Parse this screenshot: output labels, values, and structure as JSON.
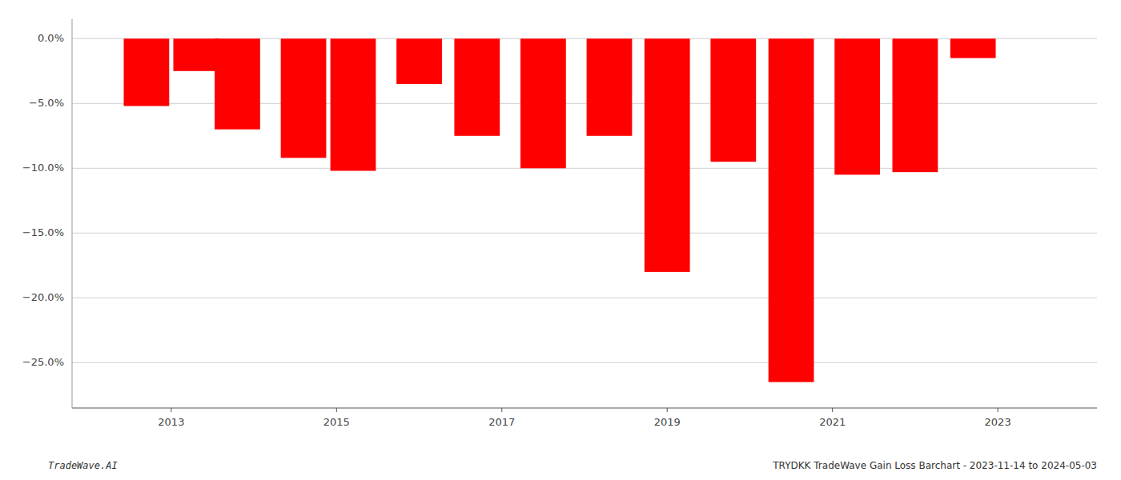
{
  "chart_data": {
    "type": "bar",
    "x": [
      2012.7,
      2013.3,
      2013.8,
      2014.6,
      2015.2,
      2016.0,
      2016.7,
      2017.5,
      2018.3,
      2019.0,
      2019.8,
      2020.5,
      2021.3,
      2022.0,
      2022.7
    ],
    "values": [
      -5.2,
      -2.5,
      -7.0,
      -9.2,
      -10.2,
      -3.5,
      -7.5,
      -10.0,
      -7.5,
      -18.0,
      -9.5,
      -26.5,
      -10.5,
      -10.3,
      -1.5
    ],
    "color": "#ff0000",
    "xlim": [
      2011.8,
      2024.2
    ],
    "xticks": [
      2013,
      2015,
      2017,
      2019,
      2021,
      2023
    ],
    "ylim": [
      -28.5,
      1.5
    ],
    "yticks": [
      {
        "value": 0.0,
        "label": "0.0%"
      },
      {
        "value": -5.0,
        "label": "−5.0%"
      },
      {
        "value": -10.0,
        "label": "−10.0%"
      },
      {
        "value": -15.0,
        "label": "−15.0%"
      },
      {
        "value": -20.0,
        "label": "−20.0%"
      },
      {
        "value": -25.0,
        "label": "−25.0%"
      }
    ],
    "grid": true,
    "annotations": [
      "TradeWave.AI",
      "TRYDKK TradeWave Gain Loss Barchart - 2023-11-14 to 2024-05-03"
    ]
  }
}
